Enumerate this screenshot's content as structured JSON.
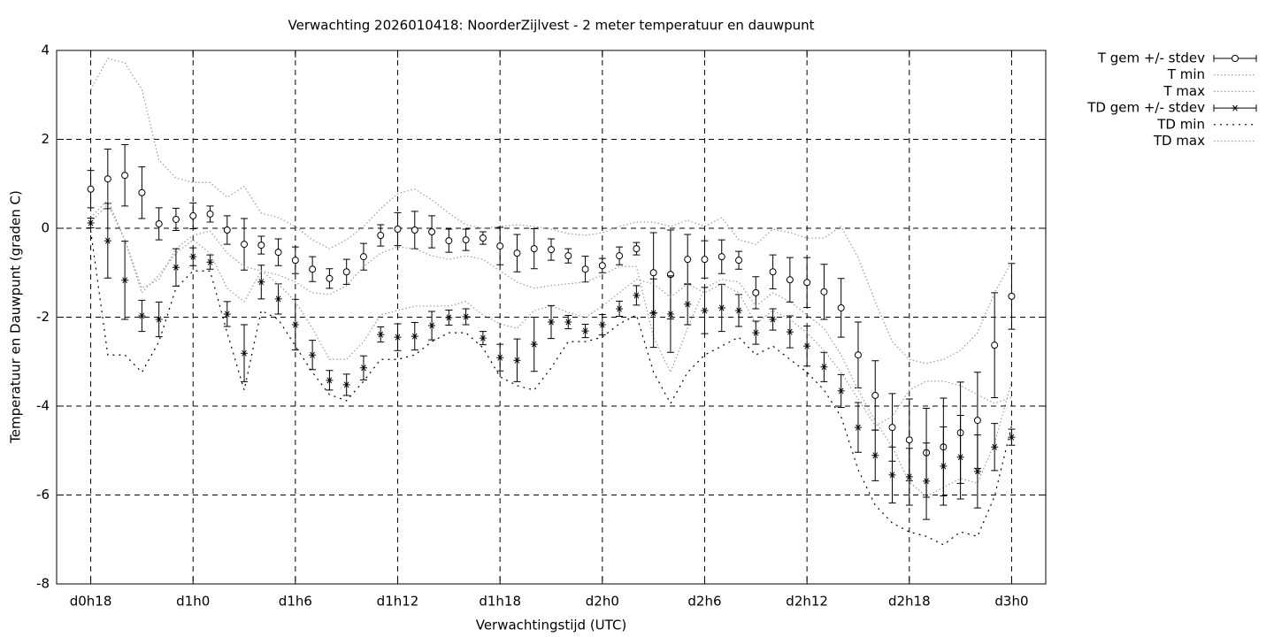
{
  "chart_data": {
    "type": "errorbar",
    "title": "Verwachting 2026010418: NoorderZijlvest - 2 meter temperatuur en dauwpunt",
    "x_label": "Verwachtingstijd (UTC)",
    "y_label": "Temperatuur en Dauwpunt (graden C)",
    "x": [
      18,
      19,
      20,
      21,
      22,
      23,
      24,
      25,
      26,
      27,
      28,
      29,
      30,
      31,
      32,
      33,
      34,
      35,
      36,
      37,
      38,
      39,
      40,
      41,
      42,
      43,
      44,
      45,
      46,
      47,
      48,
      49,
      50,
      51,
      52,
      53,
      54,
      55,
      56,
      57,
      58,
      59,
      60,
      61,
      62,
      63,
      64,
      65,
      66,
      67,
      68,
      69,
      70,
      71,
      72
    ],
    "xlim": [
      16,
      74
    ],
    "xticks": [
      {
        "value": 18,
        "label": "d0h18"
      },
      {
        "value": 24,
        "label": "d1h0"
      },
      {
        "value": 30,
        "label": "d1h6"
      },
      {
        "value": 36,
        "label": "d1h12"
      },
      {
        "value": 42,
        "label": "d1h18"
      },
      {
        "value": 48,
        "label": "d2h0"
      },
      {
        "value": 54,
        "label": "d2h6"
      },
      {
        "value": 60,
        "label": "d2h12"
      },
      {
        "value": 66,
        "label": "d2h18"
      },
      {
        "value": 72,
        "label": "d3h0"
      }
    ],
    "ylim": [
      -8,
      4
    ],
    "yticks": [
      -8,
      -6,
      -4,
      -2,
      0,
      2,
      4
    ],
    "grid": true,
    "legend": "outside-top-right",
    "series": [
      {
        "name": "T gem +/- stdev",
        "color": "#000000",
        "style": "errorbars",
        "marker": "circle",
        "values": [
          0.88,
          1.11,
          1.19,
          0.8,
          0.1,
          0.2,
          0.28,
          0.32,
          -0.04,
          -0.36,
          -0.38,
          -0.54,
          -0.72,
          -0.92,
          -1.13,
          -0.98,
          -0.64,
          -0.16,
          -0.02,
          -0.04,
          -0.08,
          -0.28,
          -0.26,
          -0.22,
          -0.4,
          -0.56,
          -0.46,
          -0.48,
          -0.62,
          -0.92,
          -0.84,
          -0.62,
          -0.46,
          -1.0,
          -1.04,
          -0.7,
          -0.7,
          -0.64,
          -0.72,
          -1.45,
          -0.98,
          -1.16,
          -1.22,
          -1.43,
          -1.79,
          -2.85,
          -3.76,
          -4.48,
          -4.76,
          -5.05,
          -4.92,
          -4.6,
          -4.32,
          -2.63,
          -1.53
        ],
        "errors": [
          0.42,
          0.67,
          0.69,
          0.58,
          0.36,
          0.25,
          0.29,
          0.18,
          0.32,
          0.58,
          0.2,
          0.3,
          0.3,
          0.28,
          0.22,
          0.28,
          0.3,
          0.24,
          0.37,
          0.42,
          0.36,
          0.26,
          0.24,
          0.14,
          0.42,
          0.42,
          0.45,
          0.24,
          0.16,
          0.29,
          0.16,
          0.2,
          0.14,
          0.9,
          1.0,
          0.56,
          0.42,
          0.38,
          0.2,
          0.36,
          0.38,
          0.5,
          0.56,
          0.62,
          0.66,
          0.74,
          0.78,
          0.76,
          0.92,
          1.0,
          1.1,
          1.14,
          1.08,
          1.18,
          0.74
        ]
      },
      {
        "name": "T min",
        "color": "#9a9a9a",
        "style": "dotted",
        "values": [
          0.14,
          0.54,
          -0.26,
          -1.35,
          -1.15,
          -0.46,
          -0.16,
          -0.06,
          -0.56,
          -0.86,
          -0.96,
          -1.05,
          -1.21,
          -1.45,
          -1.49,
          -1.29,
          -0.86,
          -0.56,
          -0.42,
          -0.46,
          -0.62,
          -0.7,
          -0.62,
          -0.7,
          -0.96,
          -1.21,
          -1.35,
          -1.29,
          -1.25,
          -1.21,
          -1.05,
          -0.86,
          -0.86,
          -2.45,
          -3.24,
          -2.25,
          -1.35,
          -1.15,
          -1.21,
          -1.75,
          -1.45,
          -1.65,
          -1.95,
          -2.25,
          -2.85,
          -3.64,
          -4.34,
          -4.92,
          -5.71,
          -6.03,
          -5.83,
          -5.63,
          -5.73,
          -4.84,
          -3.44
        ]
      },
      {
        "name": "T max",
        "color": "#9a9a9a",
        "style": "dotted",
        "values": [
          3.12,
          3.82,
          3.72,
          3.12,
          1.53,
          1.13,
          1.03,
          1.03,
          0.7,
          0.94,
          0.34,
          0.24,
          0.04,
          -0.26,
          -0.46,
          -0.26,
          0.04,
          0.44,
          0.78,
          0.88,
          0.64,
          0.34,
          0.08,
          0,
          0.04,
          0.08,
          0.04,
          -0.02,
          -0.12,
          -0.16,
          -0.1,
          0.04,
          0.14,
          0.14,
          0.04,
          0.18,
          0.04,
          0.24,
          -0.26,
          -0.36,
          -0.02,
          -0.1,
          -0.22,
          -0.22,
          0.04,
          -0.66,
          -1.65,
          -2.55,
          -2.95,
          -3.04,
          -2.95,
          -2.75,
          -2.35,
          -1.45,
          -0.76
        ]
      },
      {
        "name": "TD gem +/- stdev",
        "color": "#000000",
        "style": "errorbars",
        "marker": "asterisk",
        "values": [
          0.12,
          -0.28,
          -1.17,
          -1.97,
          -2.05,
          -0.88,
          -0.64,
          -0.76,
          -1.93,
          -2.81,
          -1.21,
          -1.59,
          -2.17,
          -2.85,
          -3.42,
          -3.52,
          -3.14,
          -2.39,
          -2.45,
          -2.43,
          -2.19,
          -2.01,
          -1.99,
          -2.47,
          -2.91,
          -2.97,
          -2.61,
          -2.11,
          -2.11,
          -2.31,
          -2.17,
          -1.81,
          -1.51,
          -1.91,
          -1.93,
          -1.71,
          -1.85,
          -1.79,
          -1.85,
          -2.35,
          -2.05,
          -2.33,
          -2.65,
          -3.12,
          -3.66,
          -4.48,
          -5.11,
          -5.55,
          -5.59,
          -5.69,
          -5.35,
          -5.15,
          -5.47,
          -4.92,
          -4.7
        ],
        "errors": [
          0.11,
          0.84,
          0.88,
          0.35,
          0.39,
          0.42,
          0.2,
          0.16,
          0.28,
          0.64,
          0.38,
          0.34,
          0.57,
          0.33,
          0.22,
          0.24,
          0.27,
          0.17,
          0.3,
          0.31,
          0.32,
          0.17,
          0.18,
          0.15,
          0.3,
          0.48,
          0.61,
          0.37,
          0.15,
          0.15,
          0.23,
          0.17,
          0.22,
          0.77,
          0.86,
          0.46,
          0.52,
          0.53,
          0.36,
          0.26,
          0.24,
          0.36,
          0.45,
          0.33,
          0.37,
          0.56,
          0.57,
          0.63,
          0.64,
          0.86,
          0.88,
          0.94,
          0.82,
          0.53,
          0.18
        ]
      },
      {
        "name": "TD min",
        "color": "#000000",
        "style": "dotted",
        "values": [
          -0.06,
          -2.85,
          -2.85,
          -3.24,
          -2.55,
          -1.35,
          -0.96,
          -0.96,
          -2.35,
          -3.64,
          -1.85,
          -2.05,
          -2.65,
          -3.24,
          -3.74,
          -3.88,
          -3.44,
          -2.95,
          -2.95,
          -2.85,
          -2.55,
          -2.35,
          -2.35,
          -2.69,
          -3.34,
          -3.54,
          -3.64,
          -3.14,
          -2.55,
          -2.55,
          -2.45,
          -2.15,
          -1.95,
          -3.24,
          -3.94,
          -3.24,
          -2.85,
          -2.65,
          -2.45,
          -2.85,
          -2.65,
          -2.95,
          -3.24,
          -3.64,
          -4.24,
          -5.43,
          -6.23,
          -6.63,
          -6.83,
          -6.93,
          -7.12,
          -6.83,
          -6.93,
          -6.03,
          -4.44
        ]
      },
      {
        "name": "TD max",
        "color": "#9a9a9a",
        "style": "dotted",
        "values": [
          0.24,
          0.64,
          -0.26,
          -1.45,
          -1.05,
          -0.56,
          -0.26,
          -0.56,
          -1.35,
          -1.65,
          -0.96,
          -1.25,
          -1.65,
          -2.25,
          -2.95,
          -2.95,
          -2.55,
          -1.95,
          -1.85,
          -1.75,
          -1.75,
          -1.75,
          -1.65,
          -1.95,
          -2.15,
          -2.25,
          -1.85,
          -1.75,
          -1.89,
          -2.01,
          -1.75,
          -1.45,
          -1.15,
          -1.25,
          -1.55,
          -1.25,
          -1.45,
          -1.25,
          -1.45,
          -2.15,
          -1.85,
          -2.05,
          -2.35,
          -2.75,
          -3.24,
          -3.84,
          -4.44,
          -4.24,
          -3.64,
          -3.44,
          -3.44,
          -3.54,
          -3.74,
          -3.94,
          -3.8
        ]
      }
    ]
  }
}
